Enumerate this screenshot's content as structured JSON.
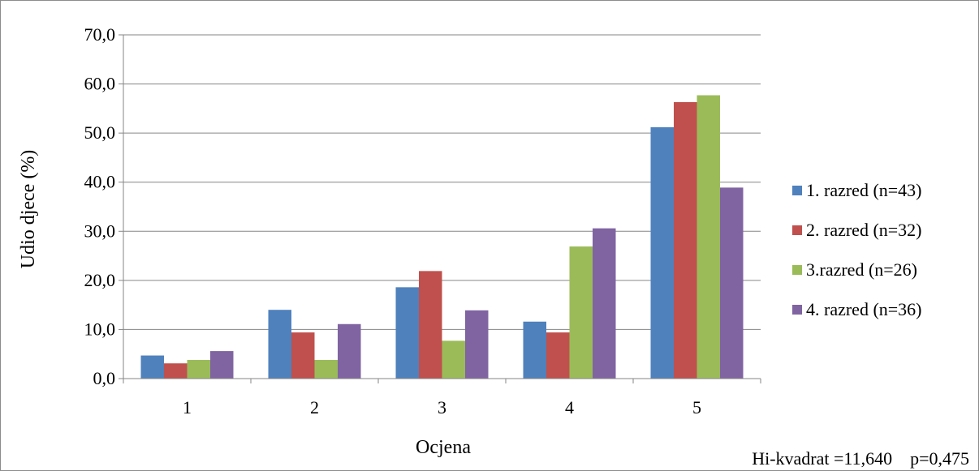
{
  "chart_data": {
    "type": "bar",
    "categories": [
      "1",
      "2",
      "3",
      "4",
      "5"
    ],
    "series": [
      {
        "name": "1. razred (n=43)",
        "color": "#4f81bd",
        "values": [
          4.7,
          14.0,
          18.6,
          11.6,
          51.2
        ]
      },
      {
        "name": "2. razred (n=32)",
        "color": "#c0504d",
        "values": [
          3.1,
          9.4,
          21.9,
          9.4,
          56.3
        ]
      },
      {
        "name": "3.razred (n=26)",
        "color": "#9bbb59",
        "values": [
          3.8,
          3.8,
          7.7,
          26.9,
          57.7
        ]
      },
      {
        "name": "4. razred (n=36)",
        "color": "#8064a2",
        "values": [
          5.6,
          11.1,
          13.9,
          30.6,
          38.9
        ]
      }
    ],
    "xlabel": "Ocjena",
    "ylabel": "Udio djece (%)",
    "ylim": [
      0,
      70
    ],
    "yticks": [
      "0,0",
      "10,0",
      "20,0",
      "30,0",
      "40,0",
      "50,0",
      "60,0",
      "70,0"
    ],
    "grid": true,
    "legend_position": "right"
  },
  "footnote": "Hi-kvadrat =11,640    p=0,475"
}
